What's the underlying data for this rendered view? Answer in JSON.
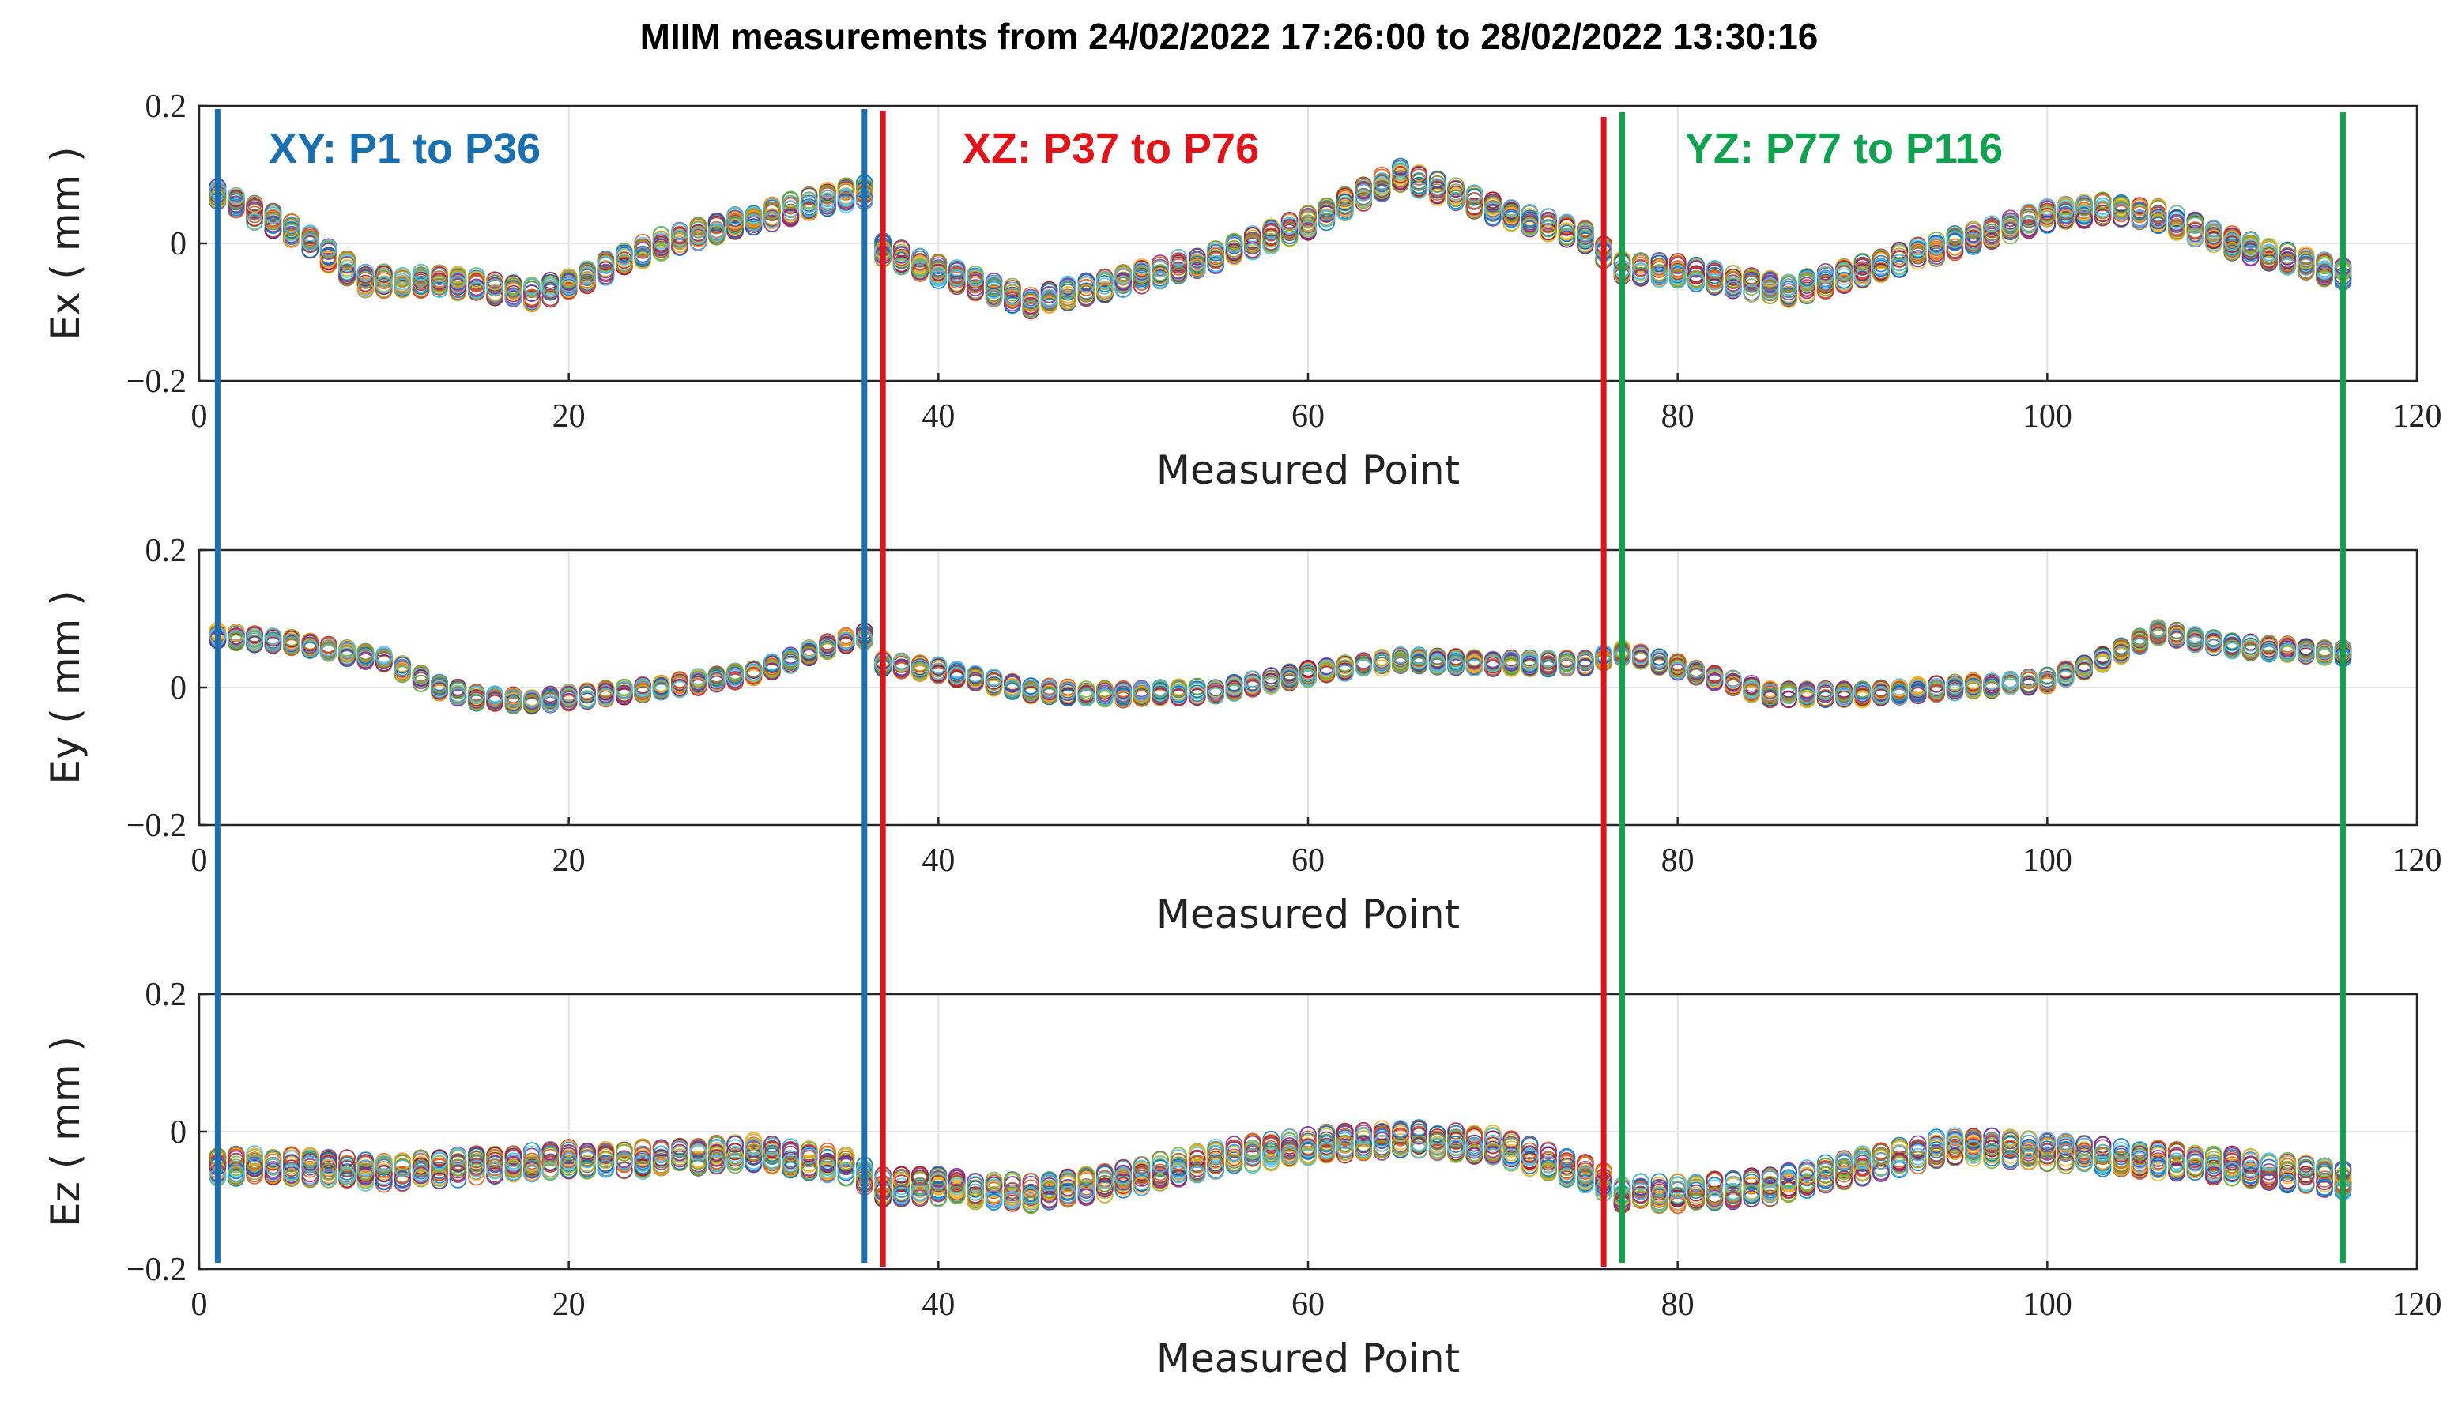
{
  "title": "MIIM measurements from 24/02/2022 17:26:00 to 28/02/2022 13:30:16",
  "colors": {
    "xy": "#1a6fb0",
    "xz": "#e0151b",
    "yz": "#11a14f",
    "series_palette": [
      "#0072BD",
      "#D95319",
      "#EDB120",
      "#7E2F8E",
      "#77AC30",
      "#4DBEEE",
      "#A2142F"
    ]
  },
  "chart_data": [
    {
      "type": "scatter",
      "ylabel": "Ex ( mm )",
      "xlabel": "Measured Point",
      "xlim": [
        0,
        120
      ],
      "ylim": [
        -0.2,
        0.2
      ],
      "xticks": [
        "0",
        "20",
        "40",
        "60",
        "80",
        "100",
        "120"
      ],
      "yticks": [
        "-0.2",
        "0",
        "0.2"
      ],
      "grid": true,
      "profile": {
        "x": [
          1,
          5,
          9,
          12,
          15,
          18,
          20,
          25,
          30,
          34,
          36,
          37,
          40,
          45,
          50,
          55,
          60,
          65,
          70,
          75,
          77,
          80,
          86,
          90,
          95,
          100,
          103,
          106,
          110,
          116
        ],
        "y": [
          0.07,
          0.02,
          -0.055,
          -0.055,
          -0.06,
          -0.075,
          -0.06,
          0.0,
          0.035,
          0.065,
          0.075,
          -0.01,
          -0.04,
          -0.085,
          -0.055,
          -0.02,
          0.03,
          0.1,
          0.05,
          0.01,
          -0.035,
          -0.04,
          -0.07,
          -0.04,
          0.0,
          0.04,
          0.05,
          0.04,
          0.0,
          -0.045
        ]
      },
      "spread": 0.014
    },
    {
      "type": "scatter",
      "ylabel": "Ey ( mm )",
      "xlabel": "Measured Point",
      "xlim": [
        0,
        120
      ],
      "ylim": [
        -0.2,
        0.2
      ],
      "xticks": [
        "0",
        "20",
        "40",
        "60",
        "80",
        "100",
        "120"
      ],
      "yticks": [
        "-0.2",
        "0",
        "0.2"
      ],
      "grid": true,
      "profile": {
        "x": [
          1,
          5,
          10,
          13,
          15,
          18,
          20,
          25,
          30,
          34,
          36,
          37,
          40,
          45,
          50,
          55,
          60,
          65,
          70,
          75,
          77,
          80,
          85,
          90,
          95,
          100,
          103,
          106,
          110,
          116
        ],
        "y": [
          0.075,
          0.065,
          0.04,
          0.0,
          -0.015,
          -0.02,
          -0.015,
          0.0,
          0.02,
          0.06,
          0.075,
          0.035,
          0.025,
          -0.005,
          -0.01,
          -0.005,
          0.02,
          0.04,
          0.035,
          0.035,
          0.05,
          0.03,
          -0.01,
          -0.01,
          0.0,
          0.01,
          0.04,
          0.08,
          0.06,
          0.05
        ]
      },
      "spread": 0.008
    },
    {
      "type": "scatter",
      "ylabel": "Ez ( mm )",
      "xlabel": "Measured Point",
      "xlim": [
        0,
        120
      ],
      "ylim": [
        -0.2,
        0.2
      ],
      "xticks": [
        "0",
        "20",
        "40",
        "60",
        "80",
        "100",
        "120"
      ],
      "yticks": [
        "-0.2",
        "0",
        "0.2"
      ],
      "grid": true,
      "profile": {
        "x": [
          1,
          5,
          10,
          15,
          20,
          25,
          30,
          35,
          37,
          40,
          45,
          50,
          55,
          60,
          65,
          70,
          75,
          77,
          80,
          85,
          90,
          95,
          100,
          105,
          110,
          116
        ],
        "y": [
          -0.05,
          -0.05,
          -0.06,
          -0.05,
          -0.04,
          -0.04,
          -0.03,
          -0.05,
          -0.08,
          -0.08,
          -0.09,
          -0.07,
          -0.04,
          -0.02,
          -0.01,
          -0.02,
          -0.06,
          -0.09,
          -0.09,
          -0.08,
          -0.05,
          -0.02,
          -0.03,
          -0.04,
          -0.05,
          -0.07
        ]
      },
      "spread": 0.018
    }
  ],
  "segments": [
    {
      "label": "XY: P1 to P36",
      "color_key": "xy",
      "x_start": 1,
      "x_end": 36
    },
    {
      "label": "XZ: P37 to P76",
      "color_key": "xz",
      "x_start": 37,
      "x_end": 76
    },
    {
      "label": "YZ: P77 to P116",
      "color_key": "yz",
      "x_start": 77,
      "x_end": 116
    }
  ]
}
